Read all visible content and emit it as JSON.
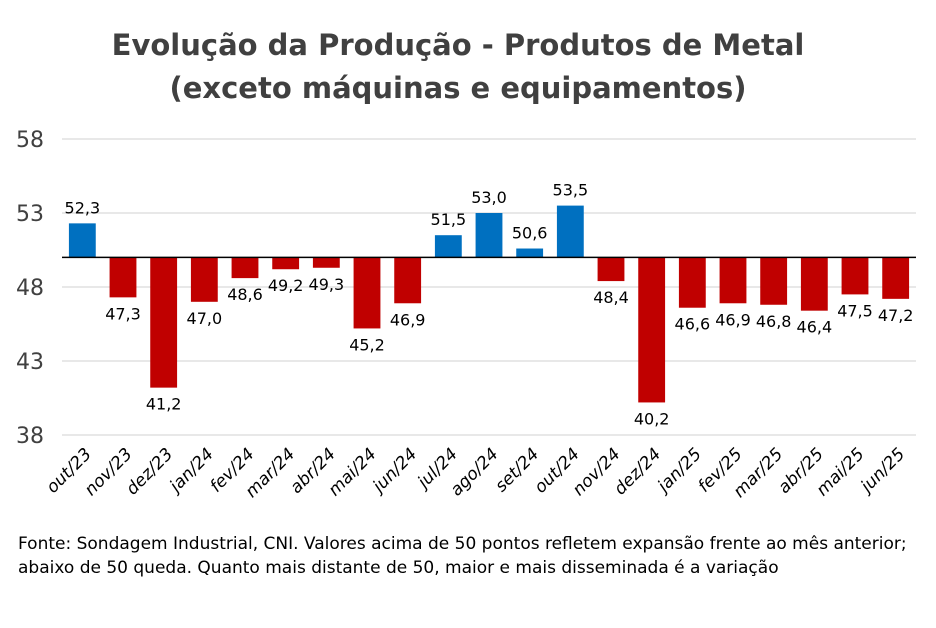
{
  "chart_data": {
    "type": "bar",
    "title_line1": "Evolução da Produção - Produtos de Metal",
    "title_line2": "(exceto máquinas e equipamentos)",
    "baseline": 50,
    "ylim": [
      38,
      58
    ],
    "yticks": [
      "58",
      "53",
      "48",
      "43",
      "38"
    ],
    "ytick_values": [
      58,
      53,
      48,
      43,
      38
    ],
    "grid": true,
    "colors": {
      "above": "#0070C0",
      "below": "#C00000",
      "grid": "#D9D9D9",
      "axis": "#000000"
    },
    "categories": [
      "out/23",
      "nov/23",
      "dez/23",
      "jan/24",
      "fev/24",
      "mar/24",
      "abr/24",
      "mai/24",
      "jun/24",
      "jul/24",
      "ago/24",
      "set/24",
      "out/24",
      "nov/24",
      "dez/24",
      "jan/25",
      "fev/25",
      "mar/25",
      "abr/25",
      "mai/25",
      "jun/25"
    ],
    "values": [
      52.3,
      47.3,
      41.2,
      47.0,
      48.6,
      49.2,
      49.3,
      45.2,
      46.9,
      51.5,
      53.0,
      50.6,
      53.5,
      48.4,
      40.2,
      46.6,
      46.9,
      46.8,
      46.4,
      47.5,
      47.2
    ],
    "labels": [
      "52,3",
      "47,3",
      "41,2",
      "47,0",
      "48,6",
      "49,2",
      "49,3",
      "45,2",
      "46,9",
      "51,5",
      "53,0",
      "50,6",
      "53,5",
      "48,4",
      "40,2",
      "46,6",
      "46,9",
      "46,8",
      "46,4",
      "47,5",
      "47,2"
    ]
  },
  "source_note": "Fonte: Sondagem Industrial, CNI. Valores acima de 50 pontos refletem expansão frente ao mês anterior; abaixo de 50 queda. Quanto mais distante de 50, maior e mais disseminada é a variação"
}
